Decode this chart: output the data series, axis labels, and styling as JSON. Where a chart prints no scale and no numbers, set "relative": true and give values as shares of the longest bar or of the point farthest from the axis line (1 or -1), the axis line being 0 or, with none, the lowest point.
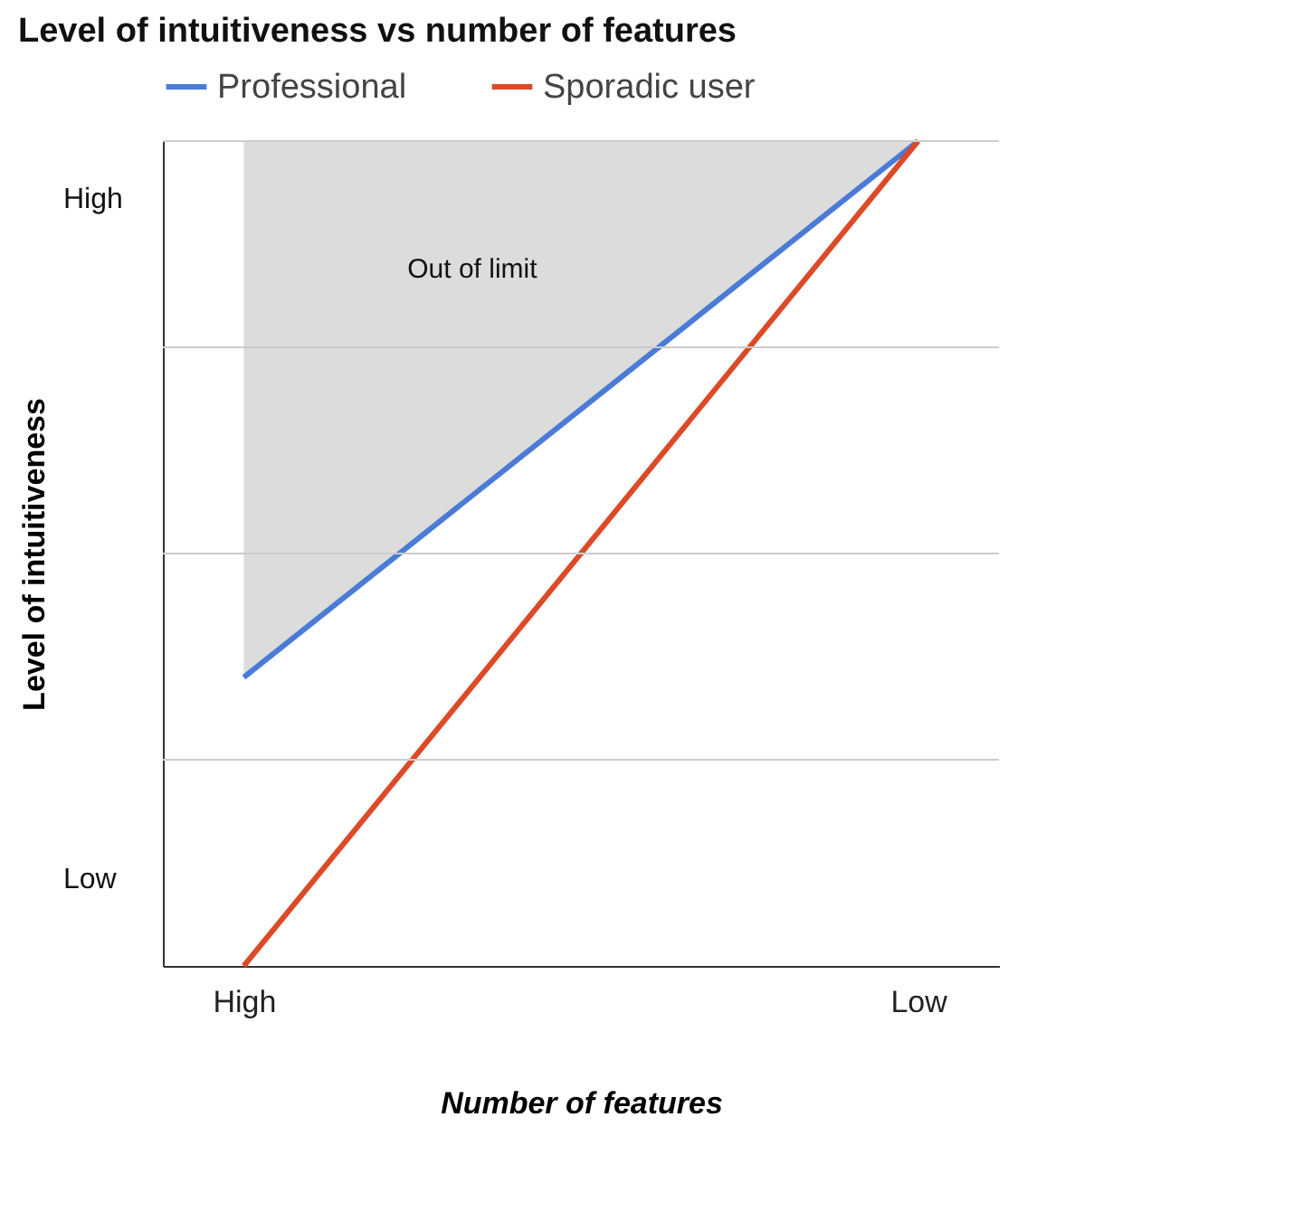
{
  "chart_data": {
    "type": "line",
    "title": "Level of intuitiveness vs number of features",
    "xlabel": "Number of features",
    "ylabel": "Level of intuitiveness",
    "categories": [
      "High",
      "Low"
    ],
    "relative": true,
    "grid": false,
    "legend": "top",
    "line_style": "solid",
    "marker": "none",
    "ref_lines": [
      {
        "axis": "y",
        "value": 0.25,
        "label": null,
        "color": "#cccccc"
      },
      {
        "axis": "y",
        "value": 0.5,
        "label": null,
        "color": "#cccccc"
      },
      {
        "axis": "y",
        "value": 0.75,
        "label": null,
        "color": "#cccccc"
      },
      {
        "axis": "y",
        "value": 1,
        "label": null,
        "color": "#cccccc"
      }
    ],
    "annotations": [
      "Out of limit",
      "High",
      "Low"
    ],
    "series": [
      {
        "name": "Professional",
        "color": "#4a7bd6",
        "values": [
          0.35,
          1
        ],
        "lower": [
          0.35,
          1
        ],
        "upper": [
          1,
          1
        ]
      },
      {
        "name": "Sporadic user",
        "color": "#dc4a28",
        "values": [
          0,
          1
        ]
      }
    ]
  }
}
